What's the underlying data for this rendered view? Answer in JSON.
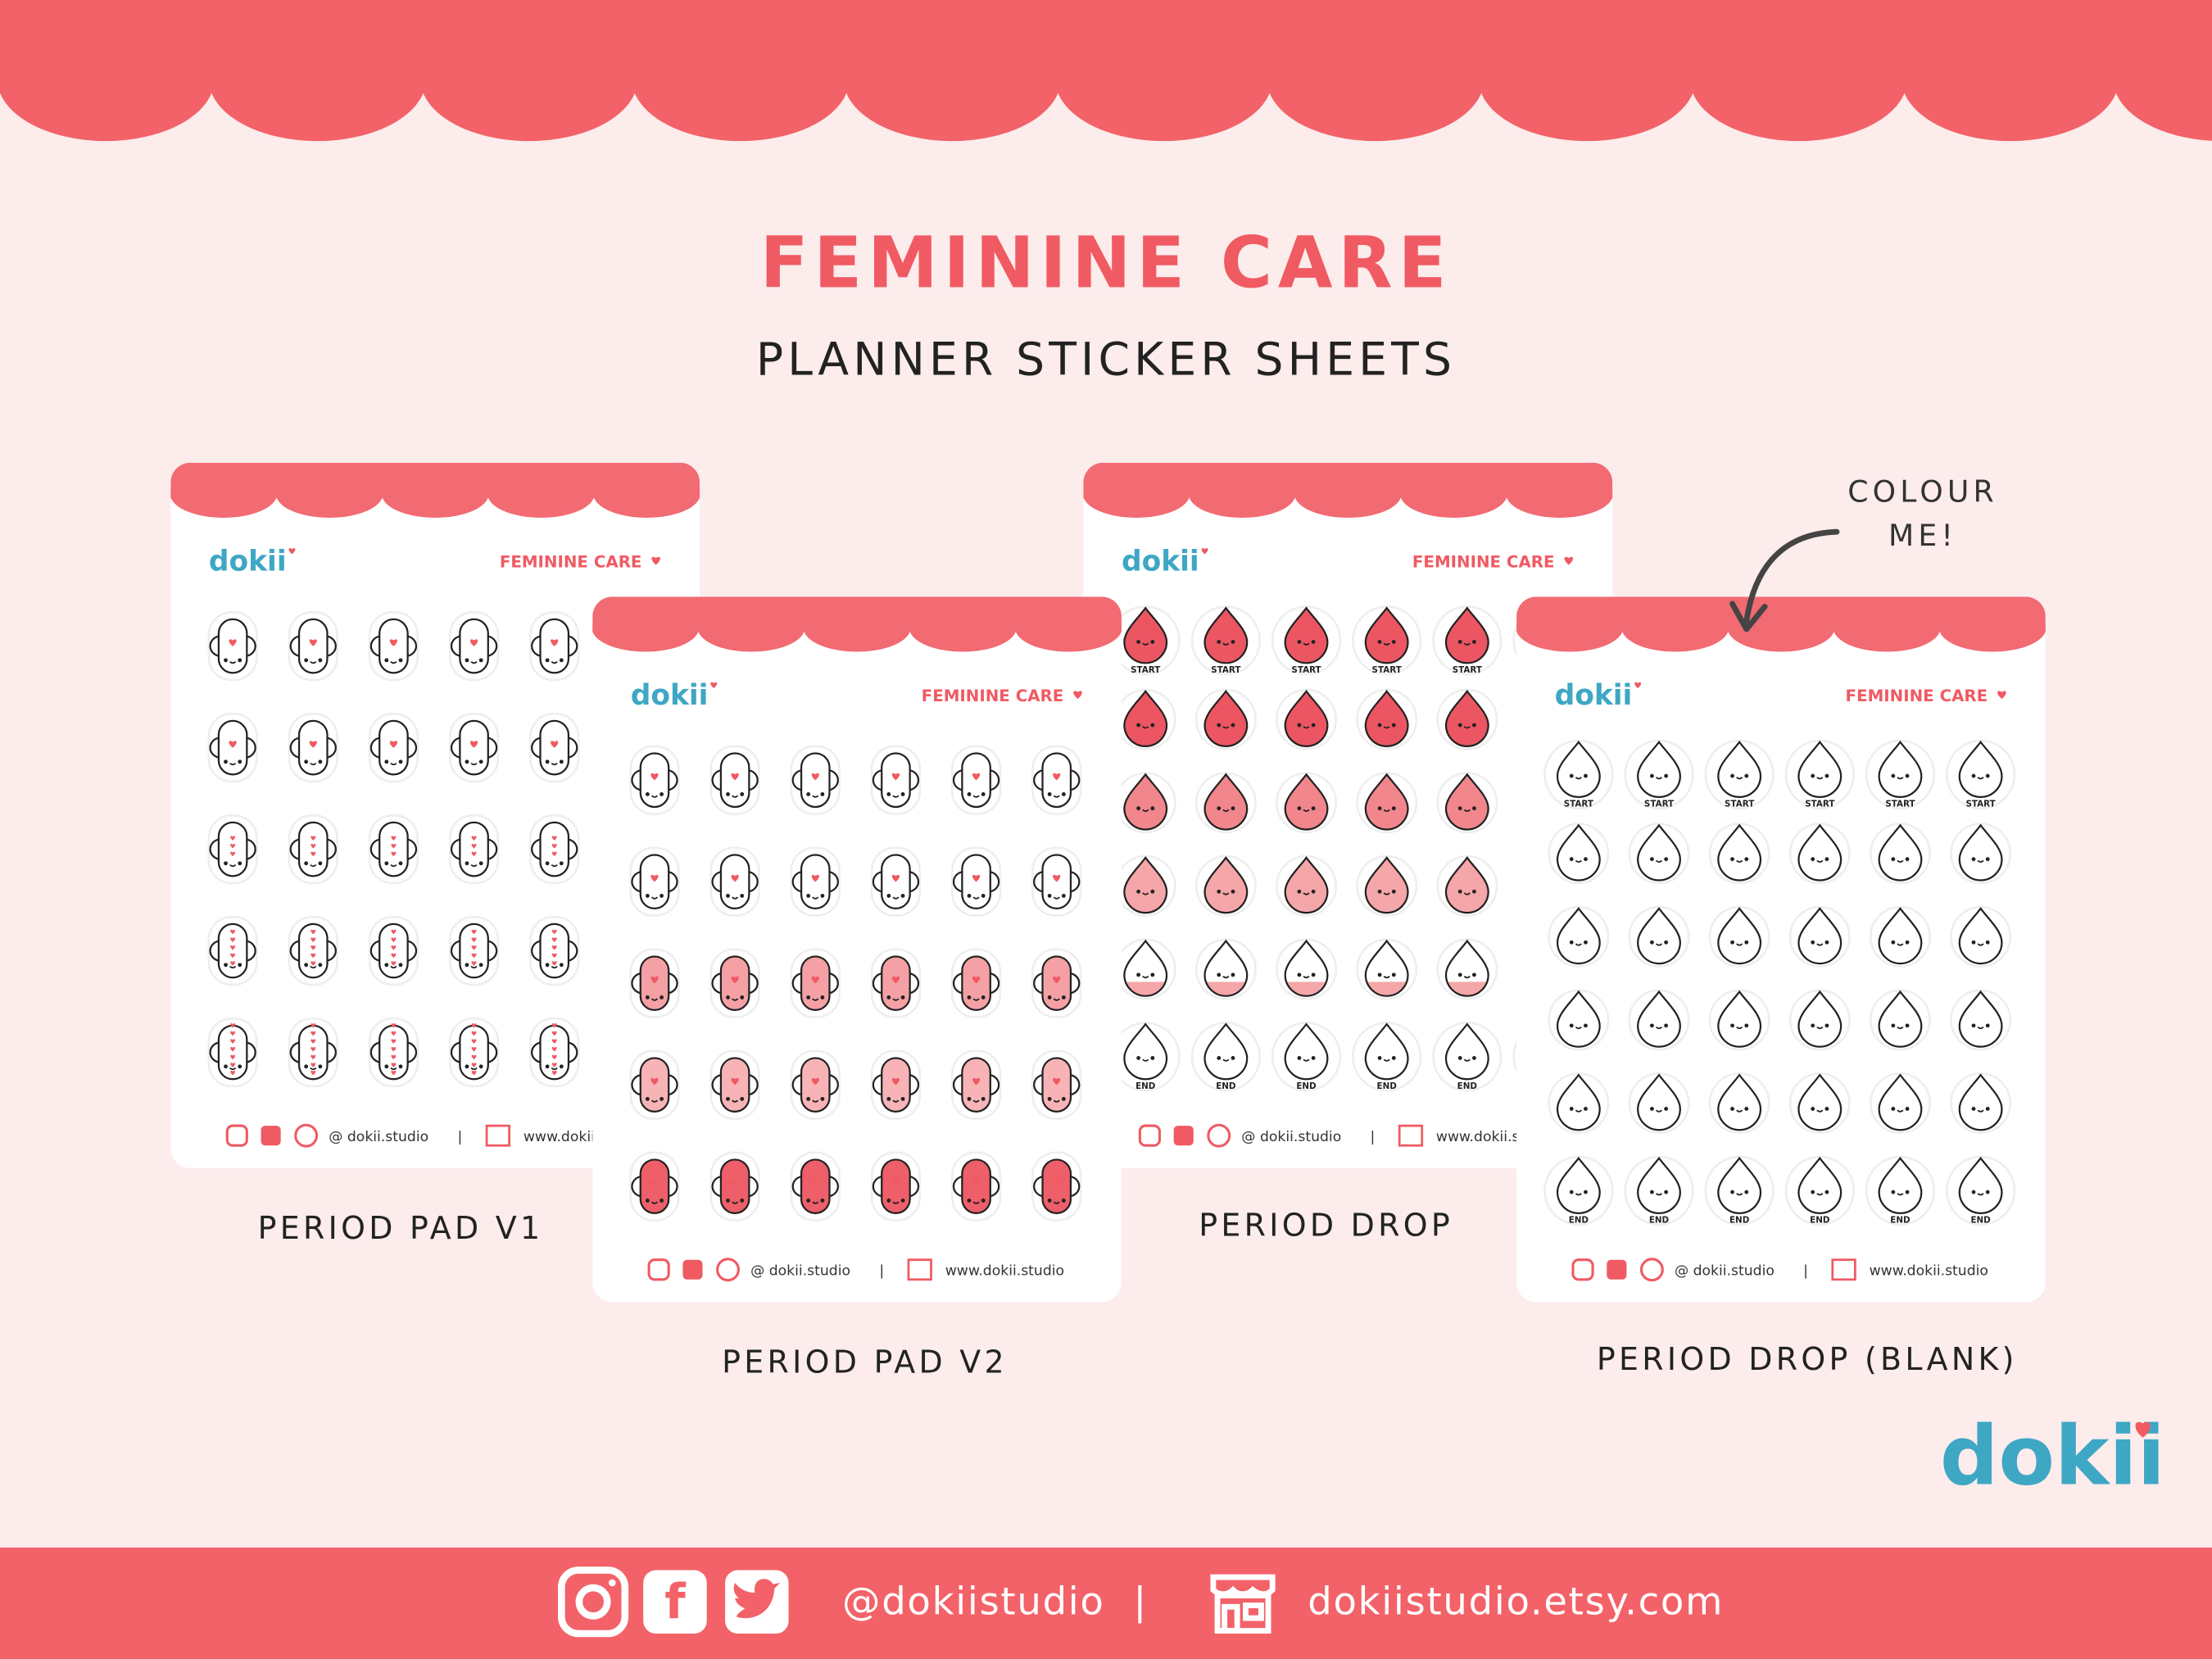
{
  "title": "FEMININE CARE",
  "subtitle": "PLANNER STICKER SHEETS",
  "annotation": [
    "COLOUR",
    "ME!"
  ],
  "sheet": {
    "brand": "dokii",
    "heading": "FEMININE CARE",
    "handle": "@ dokii.studio",
    "separator": "|",
    "website": "www.dokii.studio",
    "start_label": "START",
    "end_label": "END"
  },
  "sheets": [
    {
      "caption": "PERIOD PAD V1"
    },
    {
      "caption": "PERIOD PAD V2"
    },
    {
      "caption": "PERIOD DROP"
    },
    {
      "caption": "PERIOD DROP (BLANK)"
    }
  ],
  "logo": "dokii",
  "footer": {
    "handle": "@dokiistudio",
    "separator": "|",
    "website": "dokiistudio.etsy.com"
  }
}
